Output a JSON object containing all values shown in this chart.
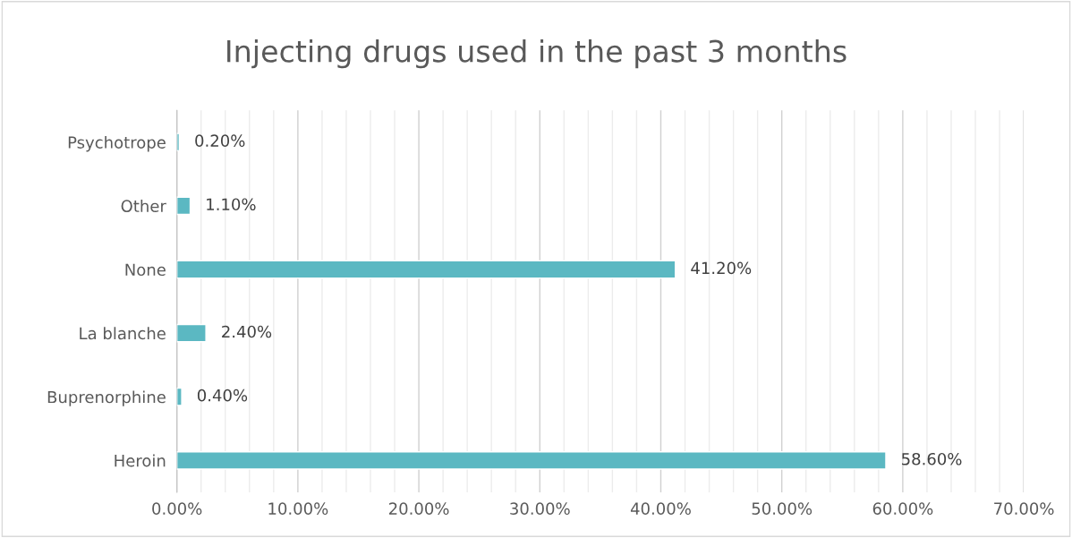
{
  "chart_data": {
    "type": "bar",
    "orientation": "horizontal",
    "title": "Injecting drugs used in the past 3 months",
    "categories": [
      "Psychotrope",
      "Other",
      "None",
      "La blanche",
      "Buprenorphine",
      "Heroin"
    ],
    "values": [
      0.2,
      1.1,
      41.2,
      2.4,
      0.4,
      58.6
    ],
    "value_labels": [
      "0.20%",
      "1.10%",
      "41.20%",
      "2.40%",
      "0.40%",
      "58.60%"
    ],
    "color": "#5bb8c2",
    "xlim": [
      0,
      70
    ],
    "xticks": [
      {
        "value": 0,
        "label": "0.00%"
      },
      {
        "value": 2,
        "label": null
      },
      {
        "value": 4,
        "label": null
      },
      {
        "value": 6,
        "label": null
      },
      {
        "value": 8,
        "label": null
      },
      {
        "value": 10,
        "label": "10.00%"
      },
      {
        "value": 12,
        "label": null
      },
      {
        "value": 14,
        "label": null
      },
      {
        "value": 16,
        "label": null
      },
      {
        "value": 18,
        "label": null
      },
      {
        "value": 20,
        "label": "20.00%"
      },
      {
        "value": 22,
        "label": null
      },
      {
        "value": 24,
        "label": null
      },
      {
        "value": 26,
        "label": null
      },
      {
        "value": 28,
        "label": null
      },
      {
        "value": 30,
        "label": "30.00%"
      },
      {
        "value": 32,
        "label": null
      },
      {
        "value": 34,
        "label": null
      },
      {
        "value": 36,
        "label": null
      },
      {
        "value": 38,
        "label": null
      },
      {
        "value": 40,
        "label": "40.00%"
      },
      {
        "value": 42,
        "label": null
      },
      {
        "value": 44,
        "label": null
      },
      {
        "value": 46,
        "label": null
      },
      {
        "value": 48,
        "label": null
      },
      {
        "value": 50,
        "label": "50.00%"
      },
      {
        "value": 52,
        "label": null
      },
      {
        "value": 54,
        "label": null
      },
      {
        "value": 56,
        "label": null
      },
      {
        "value": 58,
        "label": null
      },
      {
        "value": 60,
        "label": "60.00%"
      },
      {
        "value": 62,
        "label": null
      },
      {
        "value": 64,
        "label": null
      },
      {
        "value": 66,
        "label": null
      },
      {
        "value": 68,
        "label": null
      },
      {
        "value": 70,
        "label": "70.00%"
      }
    ],
    "grid": "x"
  }
}
